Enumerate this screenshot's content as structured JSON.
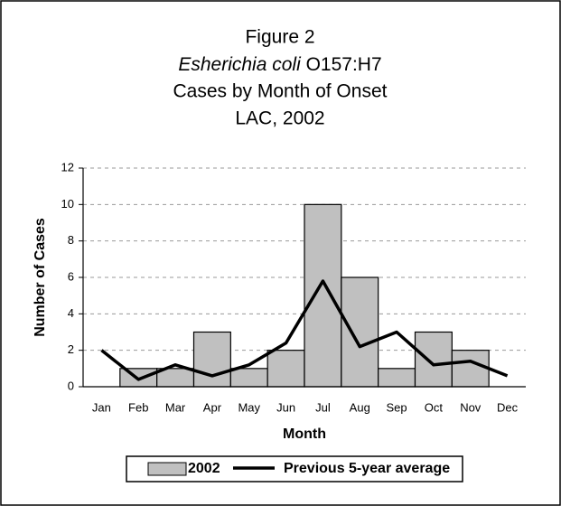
{
  "chart_data": {
    "type": "bar-line",
    "title": "Figure 2",
    "organism": "Esherichia coli",
    "serotype": "O157:H7",
    "subtitle": "Cases by Month of Onset",
    "location": "LAC, 2002",
    "x_label": "Month",
    "y_label": "Number of Cases",
    "categories": [
      "Jan",
      "Feb",
      "Mar",
      "Apr",
      "May",
      "Jun",
      "Jul",
      "Aug",
      "Sep",
      "Oct",
      "Nov",
      "Dec"
    ],
    "series": [
      {
        "name": "2002",
        "type": "bar",
        "color": "#c0c0c0",
        "values": [
          0,
          1,
          1,
          3,
          1,
          2,
          10,
          6,
          1,
          3,
          2,
          0
        ]
      },
      {
        "name": "Previous 5-year average",
        "type": "line",
        "color": "#000000",
        "values": [
          2,
          0.4,
          1.2,
          0.6,
          1.2,
          2.4,
          5.8,
          2.2,
          3.0,
          1.2,
          1.4,
          0.6
        ]
      }
    ],
    "ylim": [
      0,
      12
    ],
    "yticks": [
      0,
      2,
      4,
      6,
      8,
      10,
      12
    ],
    "grid": true,
    "legend": "bottom"
  }
}
